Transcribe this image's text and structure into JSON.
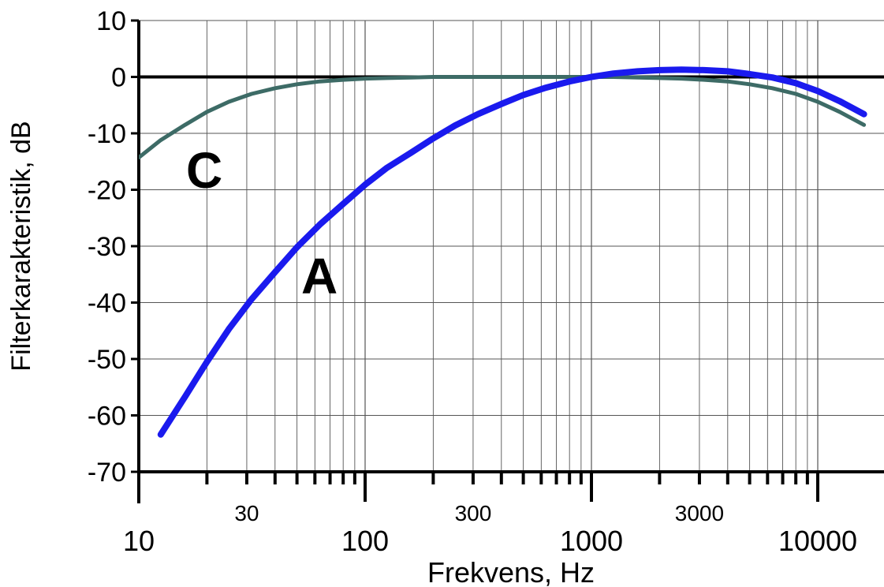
{
  "chart_data": {
    "type": "line",
    "xlabel": "Frekvens, Hz",
    "ylabel": "Filterkarakteristik, dB",
    "xscale": "log",
    "xlim": [
      10,
      16000
    ],
    "ylim": [
      -70,
      10
    ],
    "grid": true,
    "x_ticks_major": [
      "10",
      "100",
      "1000",
      "10000"
    ],
    "x_ticks_minor": [
      "30",
      "300",
      "3000"
    ],
    "y_ticks": [
      "10",
      "0",
      "-10",
      "-20",
      "-30",
      "-40",
      "-50",
      "-60",
      "-70"
    ],
    "series": [
      {
        "name": "A",
        "color": "#1a1aee",
        "x": [
          12.5,
          16,
          20,
          25,
          31.5,
          40,
          50,
          63,
          80,
          100,
          125,
          160,
          200,
          250,
          315,
          400,
          500,
          630,
          800,
          1000,
          1250,
          1600,
          2000,
          2500,
          3150,
          4000,
          5000,
          6300,
          8000,
          10000,
          12500,
          16000
        ],
        "y": [
          -63.4,
          -56.7,
          -50.5,
          -44.7,
          -39.4,
          -34.6,
          -30.2,
          -26.2,
          -22.5,
          -19.1,
          -16.1,
          -13.4,
          -10.9,
          -8.6,
          -6.6,
          -4.8,
          -3.2,
          -1.9,
          -0.8,
          0.0,
          0.6,
          1.0,
          1.2,
          1.3,
          1.2,
          1.0,
          0.5,
          -0.1,
          -1.1,
          -2.5,
          -4.3,
          -6.6
        ]
      },
      {
        "name": "C",
        "color": "#3d6b66",
        "x": [
          10,
          12.5,
          16,
          20,
          25,
          31.5,
          40,
          50,
          63,
          80,
          100,
          125,
          160,
          200,
          250,
          315,
          400,
          500,
          630,
          800,
          1000,
          1250,
          1600,
          2000,
          2500,
          3150,
          4000,
          5000,
          6300,
          8000,
          10000,
          12500,
          16000
        ],
        "y": [
          -14.3,
          -11.2,
          -8.5,
          -6.2,
          -4.4,
          -3.0,
          -2.0,
          -1.3,
          -0.8,
          -0.5,
          -0.3,
          -0.2,
          -0.1,
          0.0,
          0.0,
          0.0,
          0.0,
          0.0,
          0.0,
          0.0,
          0.0,
          0.0,
          -0.1,
          -0.2,
          -0.3,
          -0.5,
          -0.8,
          -1.3,
          -2.0,
          -3.0,
          -4.4,
          -6.2,
          -8.5
        ]
      }
    ]
  }
}
